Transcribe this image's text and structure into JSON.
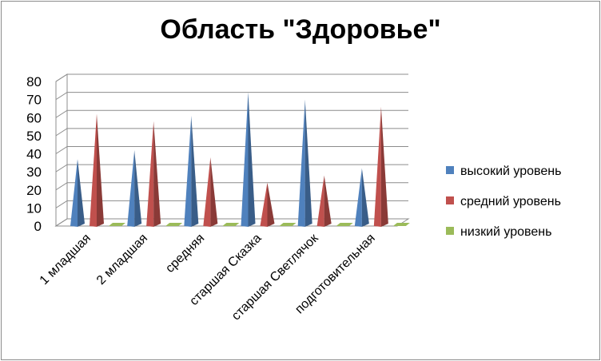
{
  "chart_data": {
    "type": "bar",
    "title": "Область \"Здоровье\"",
    "categories": [
      "1 младшая",
      "2 младшая",
      "средняя",
      "старшая Сказка",
      "старшая Светлячок",
      "подготовительная"
    ],
    "series": [
      {
        "name": "высокий уровень",
        "color": "#4f81bd",
        "values": [
          37,
          42,
          61,
          74,
          70,
          32
        ]
      },
      {
        "name": "средний уровень",
        "color": "#c0504d",
        "values": [
          62,
          58,
          38,
          24,
          28,
          66
        ]
      },
      {
        "name": "низкий уровень",
        "color": "#9bbb59",
        "values": [
          0,
          0,
          0,
          0,
          0,
          0
        ]
      }
    ],
    "yticks": [
      0,
      10,
      20,
      30,
      40,
      50,
      60,
      70,
      80
    ],
    "ylim": [
      0,
      80
    ],
    "grid": true,
    "legend": "right",
    "style": "3d-cone"
  }
}
